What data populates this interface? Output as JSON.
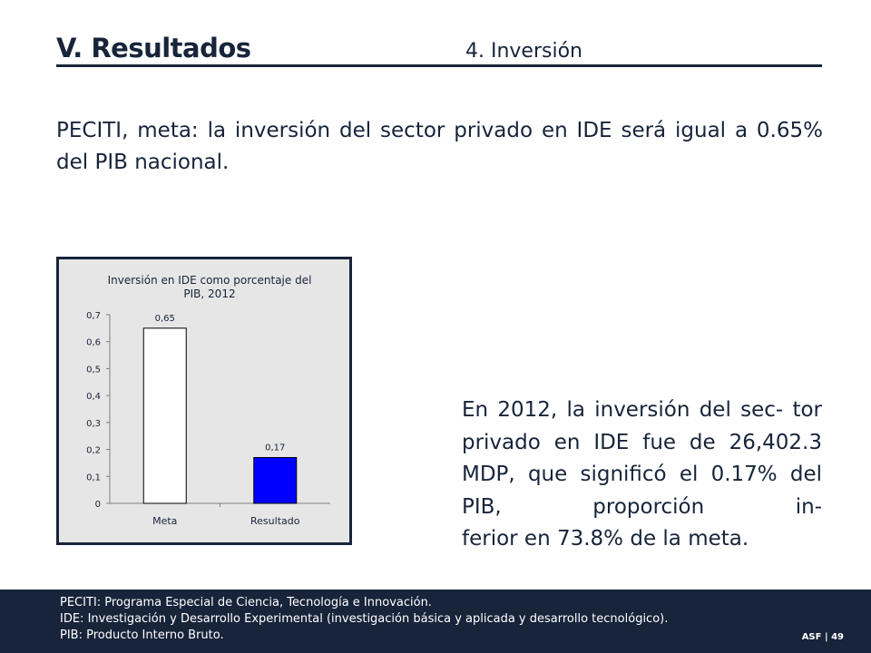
{
  "header": {
    "title": "V. Resultados",
    "subtitle": "4. Inversión"
  },
  "lead_text": "PECITI, meta: la inversión del sector privado en IDE será igual a 0.65% del PIB nacional.",
  "body_text": {
    "main": "En 2012, la inversión del sec- tor privado en IDE fue de 26,402.3 MDP, que significó el 0.17% del PIB, proporción in-",
    "last_line": "ferior en 73.8% de la meta."
  },
  "chart_data": {
    "type": "bar",
    "title_line1": "Inversión en IDE como porcentaje del",
    "title_line2": "PIB, 2012",
    "categories": [
      "Meta",
      "Resultado"
    ],
    "values": [
      0.65,
      0.17
    ],
    "value_labels": [
      "0,65",
      "0,17"
    ],
    "bar_colors": [
      "#ffffff",
      "#0000ff"
    ],
    "ylim": [
      0,
      0.7
    ],
    "yticks": [
      0,
      0.1,
      0.2,
      0.3,
      0.4,
      0.5,
      0.6,
      0.7
    ],
    "ytick_labels": [
      "0",
      "0,1",
      "0,2",
      "0,3",
      "0,4",
      "0,5",
      "0,6",
      "0,7"
    ],
    "grid": false,
    "legend": "none",
    "background": "#e6e6e6"
  },
  "footer": {
    "notes": [
      "PECITI: Programa Especial de Ciencia, Tecnología e Innovación.",
      "IDE: Investigación y Desarrollo Experimental (investigación básica y aplicada y desarrollo tecnológico).",
      "PIB: Producto Interno Bruto."
    ],
    "page_label": "ASF | 49"
  },
  "colors": {
    "navy": "#17243a",
    "chart_bg": "#e6e6e6",
    "bar_result": "#0000ff"
  }
}
